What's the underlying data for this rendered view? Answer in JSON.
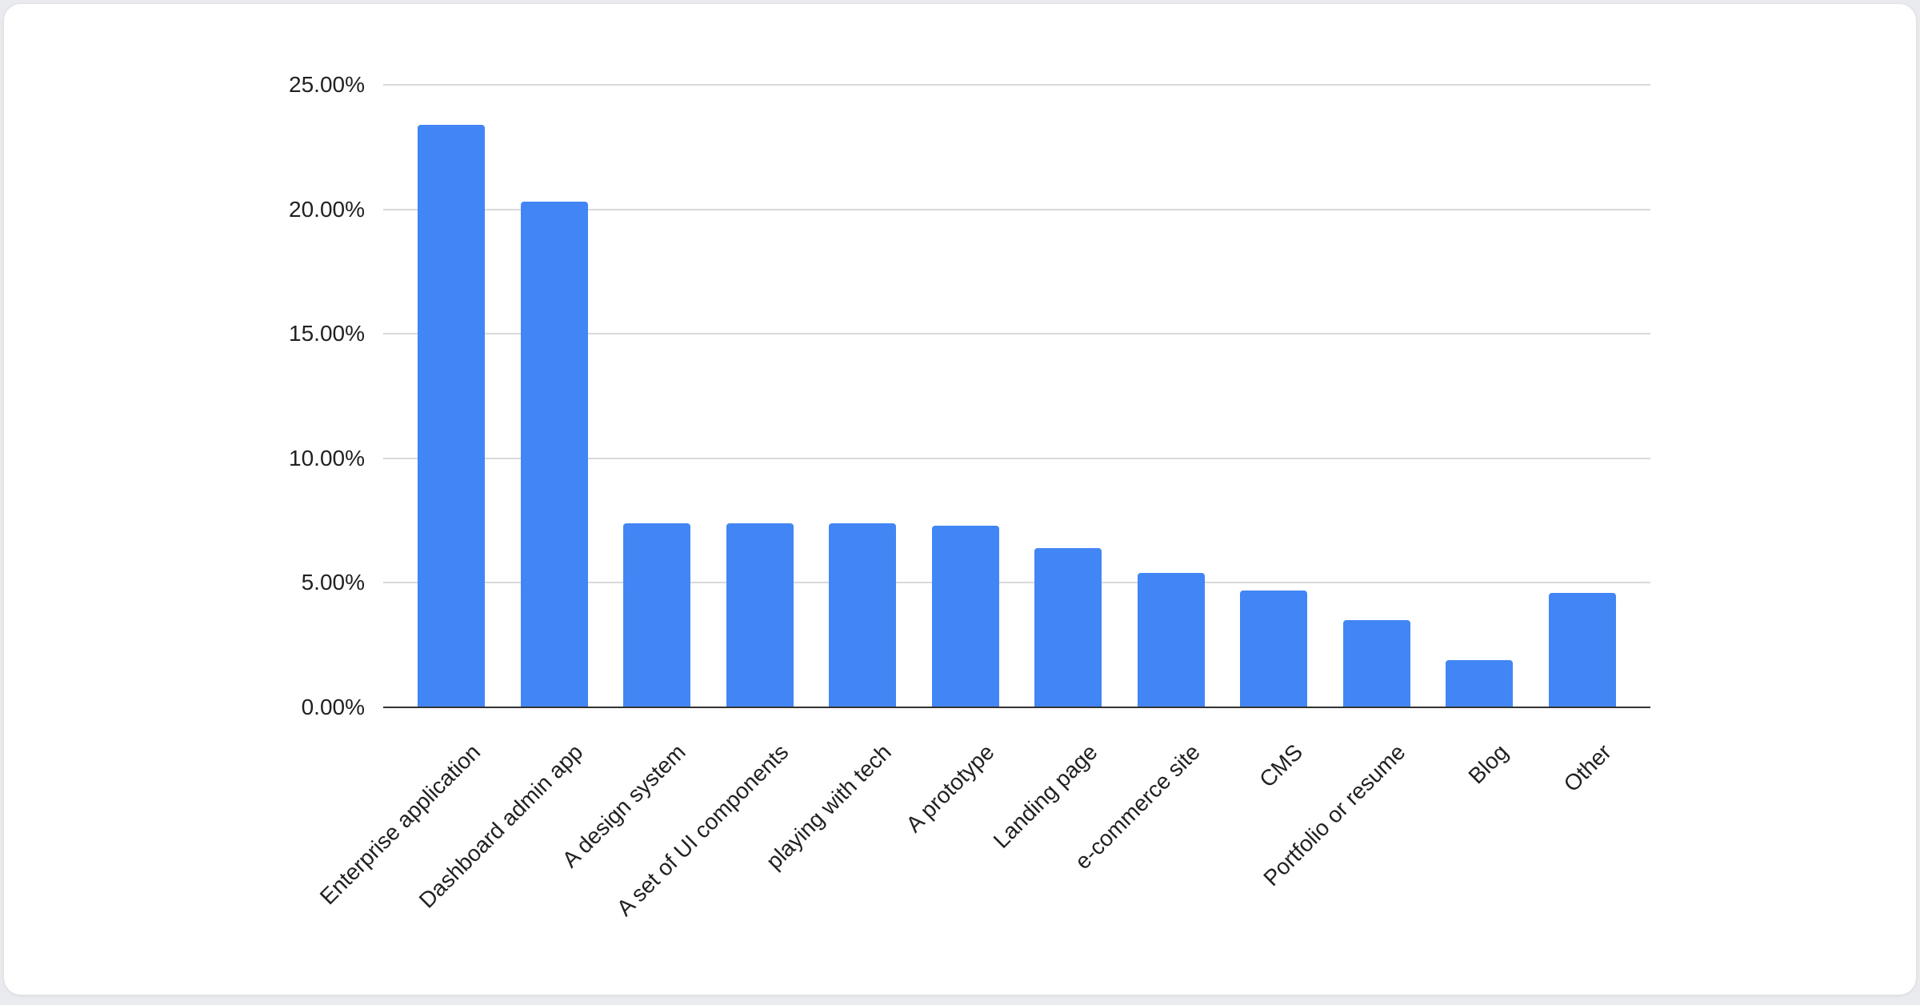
{
  "page": {
    "background": "#e9ebee",
    "card_background": "#ffffff"
  },
  "chart_data": {
    "type": "bar",
    "title": "",
    "xlabel": "",
    "ylabel": "",
    "categories": [
      "Enterprise application",
      "Dashboard admin app",
      "A design system",
      "A set of UI components",
      "playing with tech",
      "A prototype",
      "Landing page",
      "e-commerce site",
      "CMS",
      "Portfolio or resume",
      "Blog",
      "Other"
    ],
    "values": [
      23.4,
      20.3,
      7.4,
      7.4,
      7.4,
      7.3,
      6.4,
      5.4,
      4.7,
      3.5,
      1.9,
      4.6
    ],
    "unit": "%",
    "ylim": [
      0,
      25
    ],
    "yticks": [
      "0.00%",
      "5.00%",
      "10.00%",
      "15.00%",
      "20.00%",
      "25.00%"
    ],
    "ytick_values": [
      0,
      5,
      10,
      15,
      20,
      25
    ],
    "grid": true,
    "legend": "none",
    "x_label_rotation_deg": -45,
    "colors": {
      "bar": "#4285f4",
      "gridline": "#d9d9d9",
      "axis_line": "#333333",
      "label": "#212121"
    }
  }
}
